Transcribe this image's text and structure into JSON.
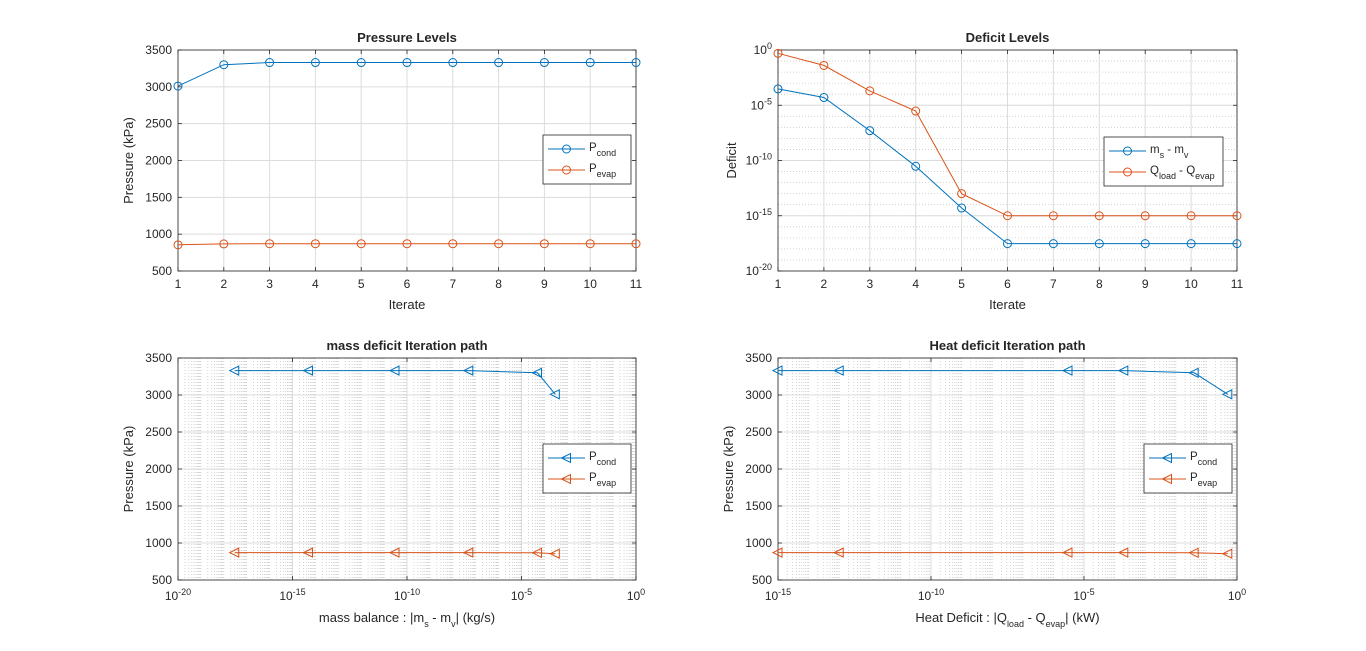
{
  "colors": {
    "series1": "#0072BD",
    "series2": "#D95319",
    "axis": "#262626",
    "grid": "#dcdcdc",
    "minor_grid": "#c8c8c8"
  },
  "chart_data": [
    {
      "type": "line",
      "title": "Pressure Levels",
      "xlabel": "Iterate",
      "ylabel": "Pressure (kPa)",
      "xlim": [
        1,
        11
      ],
      "ylim": [
        500,
        3500
      ],
      "xscale": "linear",
      "yscale": "linear",
      "xticks": [
        1,
        2,
        3,
        4,
        5,
        6,
        7,
        8,
        9,
        10,
        11
      ],
      "yticks": [
        500,
        1000,
        1500,
        2000,
        2500,
        3000,
        3500
      ],
      "grid": true,
      "legend_position": "right",
      "marker": "circle",
      "x": [
        1,
        2,
        3,
        4,
        5,
        6,
        7,
        8,
        9,
        10,
        11
      ],
      "series": [
        {
          "name": "P",
          "sub": "cond",
          "values": [
            3010,
            3300,
            3330,
            3330,
            3330,
            3330,
            3330,
            3330,
            3330,
            3330,
            3330
          ]
        },
        {
          "name": "P",
          "sub": "evap",
          "values": [
            855,
            868,
            870,
            870,
            870,
            870,
            870,
            870,
            870,
            870,
            870
          ]
        }
      ]
    },
    {
      "type": "line",
      "title": "Deficit Levels",
      "xlabel": "Iterate",
      "ylabel": "Deficit",
      "xlim": [
        1,
        11
      ],
      "ylim": [
        1e-20,
        1
      ],
      "xscale": "linear",
      "yscale": "log",
      "xticks": [
        1,
        2,
        3,
        4,
        5,
        6,
        7,
        8,
        9,
        10,
        11
      ],
      "yticks": [
        0,
        -5,
        -10,
        -15,
        -20
      ],
      "grid": true,
      "minor_grid": true,
      "legend_position": "right",
      "marker": "circle",
      "x": [
        1,
        2,
        3,
        4,
        5,
        6,
        7,
        8,
        9,
        10,
        11
      ],
      "series": [
        {
          "label_parts": [
            [
              "m",
              ""
            ],
            [
              "s",
              "sub"
            ],
            [
              " - m",
              ""
            ],
            [
              "v",
              "sub"
            ]
          ],
          "values": [
            0.0003,
            5e-05,
            5e-08,
            3e-11,
            5e-15,
            3e-18,
            3e-18,
            3e-18,
            3e-18,
            3e-18,
            3e-18
          ]
        },
        {
          "label_parts": [
            [
              "Q",
              ""
            ],
            [
              "load",
              "sub"
            ],
            [
              " - Q",
              ""
            ],
            [
              "evap",
              "sub"
            ]
          ],
          "values": [
            0.5,
            0.04,
            0.0002,
            3e-06,
            1e-13,
            1e-15,
            1e-15,
            1e-15,
            1e-15,
            1e-15,
            1e-15
          ]
        }
      ]
    },
    {
      "type": "line",
      "title": "mass deficit Iteration path",
      "xlabel_parts": [
        [
          "mass balance : |m",
          ""
        ],
        [
          "s",
          "sub"
        ],
        [
          " - m",
          ""
        ],
        [
          "v",
          "sub"
        ],
        [
          "| (kg/s)",
          ""
        ]
      ],
      "ylabel": "Pressure  (kPa)",
      "xlim": [
        1e-20,
        1
      ],
      "ylim": [
        500,
        3500
      ],
      "xscale": "log",
      "yscale": "linear",
      "xticks": [
        -20,
        -15,
        -10,
        -5,
        0
      ],
      "yticks": [
        500,
        1000,
        1500,
        2000,
        2500,
        3000,
        3500
      ],
      "grid": true,
      "minor_grid": true,
      "legend_position": "right",
      "marker": "triangle-left",
      "series": [
        {
          "name": "P",
          "sub": "cond",
          "x": [
            0.0003,
            5e-05,
            5e-08,
            3e-11,
            5e-15,
            3e-18
          ],
          "values": [
            3010,
            3300,
            3330,
            3330,
            3330,
            3330
          ]
        },
        {
          "name": "P",
          "sub": "evap",
          "x": [
            0.0003,
            5e-05,
            5e-08,
            3e-11,
            5e-15,
            3e-18
          ],
          "values": [
            855,
            868,
            870,
            870,
            870,
            870
          ]
        }
      ]
    },
    {
      "type": "line",
      "title": "Heat deficit Iteration path",
      "xlabel_parts": [
        [
          "Heat Deficit : |Q",
          ""
        ],
        [
          "load",
          "sub"
        ],
        [
          " - Q",
          ""
        ],
        [
          "evap",
          "sub"
        ],
        [
          "| (kW)",
          ""
        ]
      ],
      "ylabel": "Pressure  (kPa)",
      "xlim": [
        1e-15,
        1
      ],
      "ylim": [
        500,
        3500
      ],
      "xscale": "log",
      "yscale": "linear",
      "xticks": [
        -15,
        -10,
        -5,
        0
      ],
      "yticks": [
        500,
        1000,
        1500,
        2000,
        2500,
        3000,
        3500
      ],
      "grid": true,
      "minor_grid": true,
      "legend_position": "right",
      "marker": "triangle-left",
      "series": [
        {
          "name": "P",
          "sub": "cond",
          "x": [
            0.5,
            0.04,
            0.0002,
            3e-06,
            1e-13,
            1e-15
          ],
          "values": [
            3010,
            3300,
            3330,
            3330,
            3330,
            3330
          ]
        },
        {
          "name": "P",
          "sub": "evap",
          "x": [
            0.5,
            0.04,
            0.0002,
            3e-06,
            1e-13,
            1e-15
          ],
          "values": [
            855,
            868,
            870,
            870,
            870,
            870
          ]
        }
      ]
    }
  ]
}
